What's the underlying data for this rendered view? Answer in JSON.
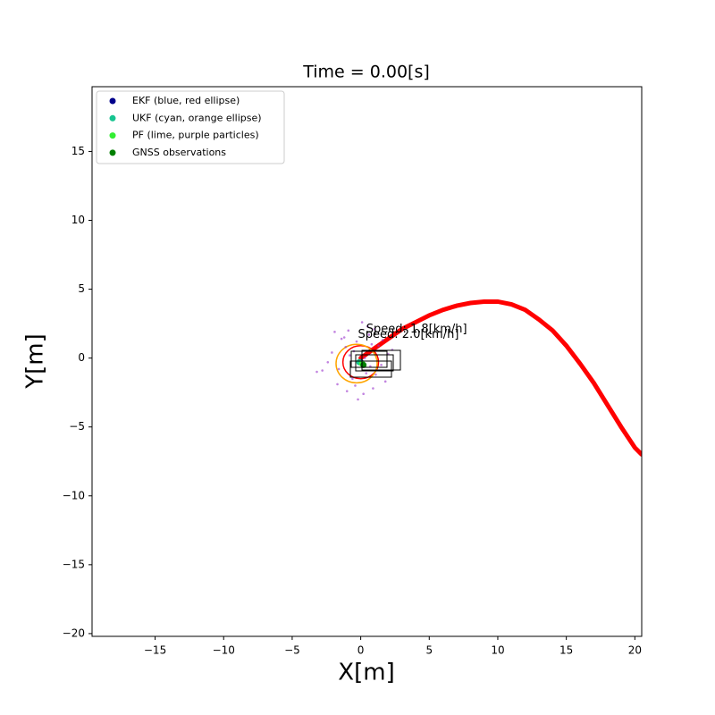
{
  "chart_data": {
    "type": "scatter",
    "title": "Time = 0.00[s]",
    "x_label": "X[m]",
    "y_label": "Y[m]",
    "xlim": [
      -19.6,
      20.5
    ],
    "ylim": [
      -20.2,
      19.7
    ],
    "xticks": [
      {
        "value": -15,
        "label": "−15"
      },
      {
        "value": -10,
        "label": "−10"
      },
      {
        "value": -5,
        "label": "−5"
      },
      0,
      5,
      10,
      15,
      20
    ],
    "yticks": [
      {
        "value": -20,
        "label": "−20"
      },
      {
        "value": -15,
        "label": "−15"
      },
      {
        "value": -10,
        "label": "−10"
      },
      {
        "value": -5,
        "label": "−5"
      },
      0,
      5,
      10,
      15
    ],
    "legend": "upper left",
    "series": [
      {
        "color": "#ff0000",
        "mode": "line",
        "x": [
          0,
          1,
          2,
          3,
          4,
          5,
          6,
          7,
          8,
          9,
          10,
          11,
          12,
          13,
          14,
          15,
          16,
          17,
          18,
          19,
          20,
          20.5
        ],
        "y": [
          0,
          0.7,
          1.4,
          2.1,
          2.6,
          3.1,
          3.5,
          3.8,
          4.0,
          4.1,
          4.1,
          3.9,
          3.5,
          2.8,
          2.0,
          0.9,
          -0.4,
          -1.8,
          -3.4,
          -5.0,
          -6.5,
          -7.0
        ]
      },
      {
        "name": "EKF (blue, red ellipse)",
        "color": "#00008b",
        "x": [
          0
        ],
        "y": [
          -0.3
        ],
        "ellipse": {
          "color": "#ff0000",
          "x": 0.0,
          "y": -0.3,
          "rx": 1.3,
          "ry": 1.2
        }
      },
      {
        "name": "UKF (cyan, orange ellipse)",
        "color": "#17c490",
        "x": [
          -0.1
        ],
        "y": [
          -0.3
        ],
        "ellipse": {
          "color": "#ffa500",
          "x": -0.3,
          "y": -0.4,
          "rx": 1.5,
          "ry": 1.4
        }
      },
      {
        "name": "PF (lime, purple particles)",
        "color": "#33ee33",
        "x": [
          0.1
        ],
        "y": [
          -0.4
        ],
        "particles": {
          "color": "#9932cc",
          "x": [
            -1.2,
            0.5,
            -2.1,
            1.1,
            -0.4,
            0.8,
            -1.6,
            2.0,
            -0.9,
            0.2,
            1.5,
            -2.8,
            -0.3,
            0.9,
            -1.1,
            0.6,
            -1.9,
            1.3,
            -0.6,
            0.1,
            -3.2,
            1.8,
            -0.8,
            0.4,
            -1.4,
            2.3,
            -0.2,
            1.0,
            -2.4,
            0.7,
            -0.5,
            1.6,
            -1.0,
            0.3,
            -1.7
          ],
          "y": [
            1.5,
            2.3,
            0.4,
            -1.2,
            -2.0,
            1.0,
            -0.8,
            0.3,
            2.0,
            -2.6,
            -0.5,
            -0.9,
            1.2,
            -2.2,
            0.8,
            1.7,
            1.9,
            0.9,
            -1.5,
            2.6,
            -1.0,
            -1.7,
            0.2,
            -1.1,
            1.4,
            0.6,
            -3.0,
            2.1,
            -0.3,
            -0.6,
            0.5,
            1.3,
            -2.4,
            0.0,
            -1.9
          ]
        }
      },
      {
        "name": "GNSS observations",
        "color": "#007f00",
        "x": [
          0.2
        ],
        "y": [
          -0.5
        ]
      }
    ],
    "annotations": [
      {
        "text": "Speed: 1.8[km/h]",
        "x": 0.4,
        "y": 2.1
      },
      {
        "text": "Speed: 2.0[km/h]",
        "x": -0.2,
        "y": 1.7
      }
    ]
  }
}
